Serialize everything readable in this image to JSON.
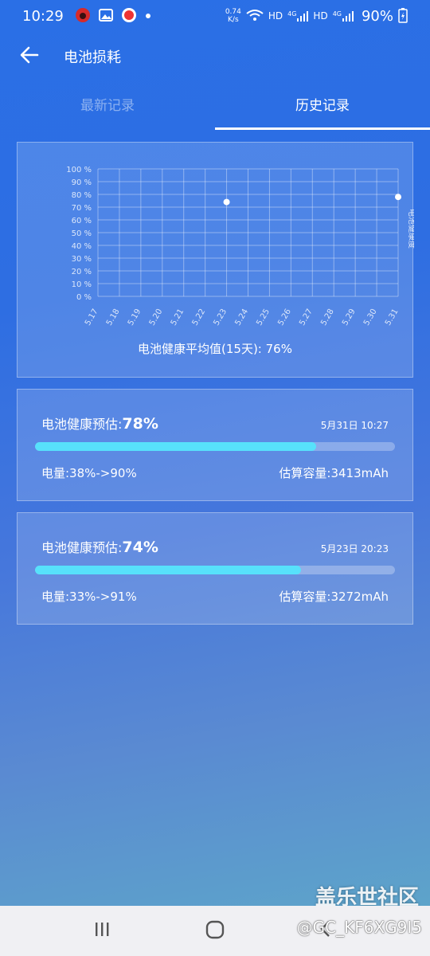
{
  "status_bar": {
    "time": "10:29",
    "net_speed_value": "0.74",
    "net_speed_unit": "K/s",
    "signal1": "HD",
    "signal2": "HD",
    "network_type": "4G",
    "battery_percent": "90%"
  },
  "header": {
    "title": "电池损耗"
  },
  "tabs": [
    {
      "label": "最新记录",
      "active": false
    },
    {
      "label": "历史记录",
      "active": true
    }
  ],
  "chart_data": {
    "type": "scatter",
    "x_categories": [
      "5.17",
      "5.18",
      "5.19",
      "5.20",
      "5.21",
      "5.22",
      "5.23",
      "5.24",
      "5.25",
      "5.26",
      "5.27",
      "5.28",
      "5.29",
      "5.30",
      "5.31"
    ],
    "y_ticks": [
      "0 %",
      "10 %",
      "20 %",
      "30 %",
      "40 %",
      "50 %",
      "60 %",
      "70 %",
      "80 %",
      "90 %",
      "100 %"
    ],
    "ylim": [
      0,
      100
    ],
    "ylabel": "电池健康度",
    "series": [
      {
        "points": [
          {
            "x": "5.23",
            "y": 74
          },
          {
            "x": "5.31",
            "y": 78
          }
        ]
      }
    ],
    "grid": true
  },
  "summary": {
    "average_text": "电池健康平均值(15天): 76%"
  },
  "records": [
    {
      "label": "电池健康预估:",
      "value": "78%",
      "health": 78,
      "timestamp": "5月31日 10:27",
      "charge": "电量:38%->90%",
      "capacity": "估算容量:3413mAh"
    },
    {
      "label": "电池健康预估:",
      "value": "74%",
      "health": 74,
      "timestamp": "5月23日 20:23",
      "charge": "电量:33%->91%",
      "capacity": "估算容量:3272mAh"
    }
  ],
  "watermark": {
    "brand": "盖乐世社区",
    "user": "@GC_KF6XG9I5"
  },
  "colors": {
    "progress_fill": "#57e1fb",
    "tab_active": "#ffffff"
  }
}
